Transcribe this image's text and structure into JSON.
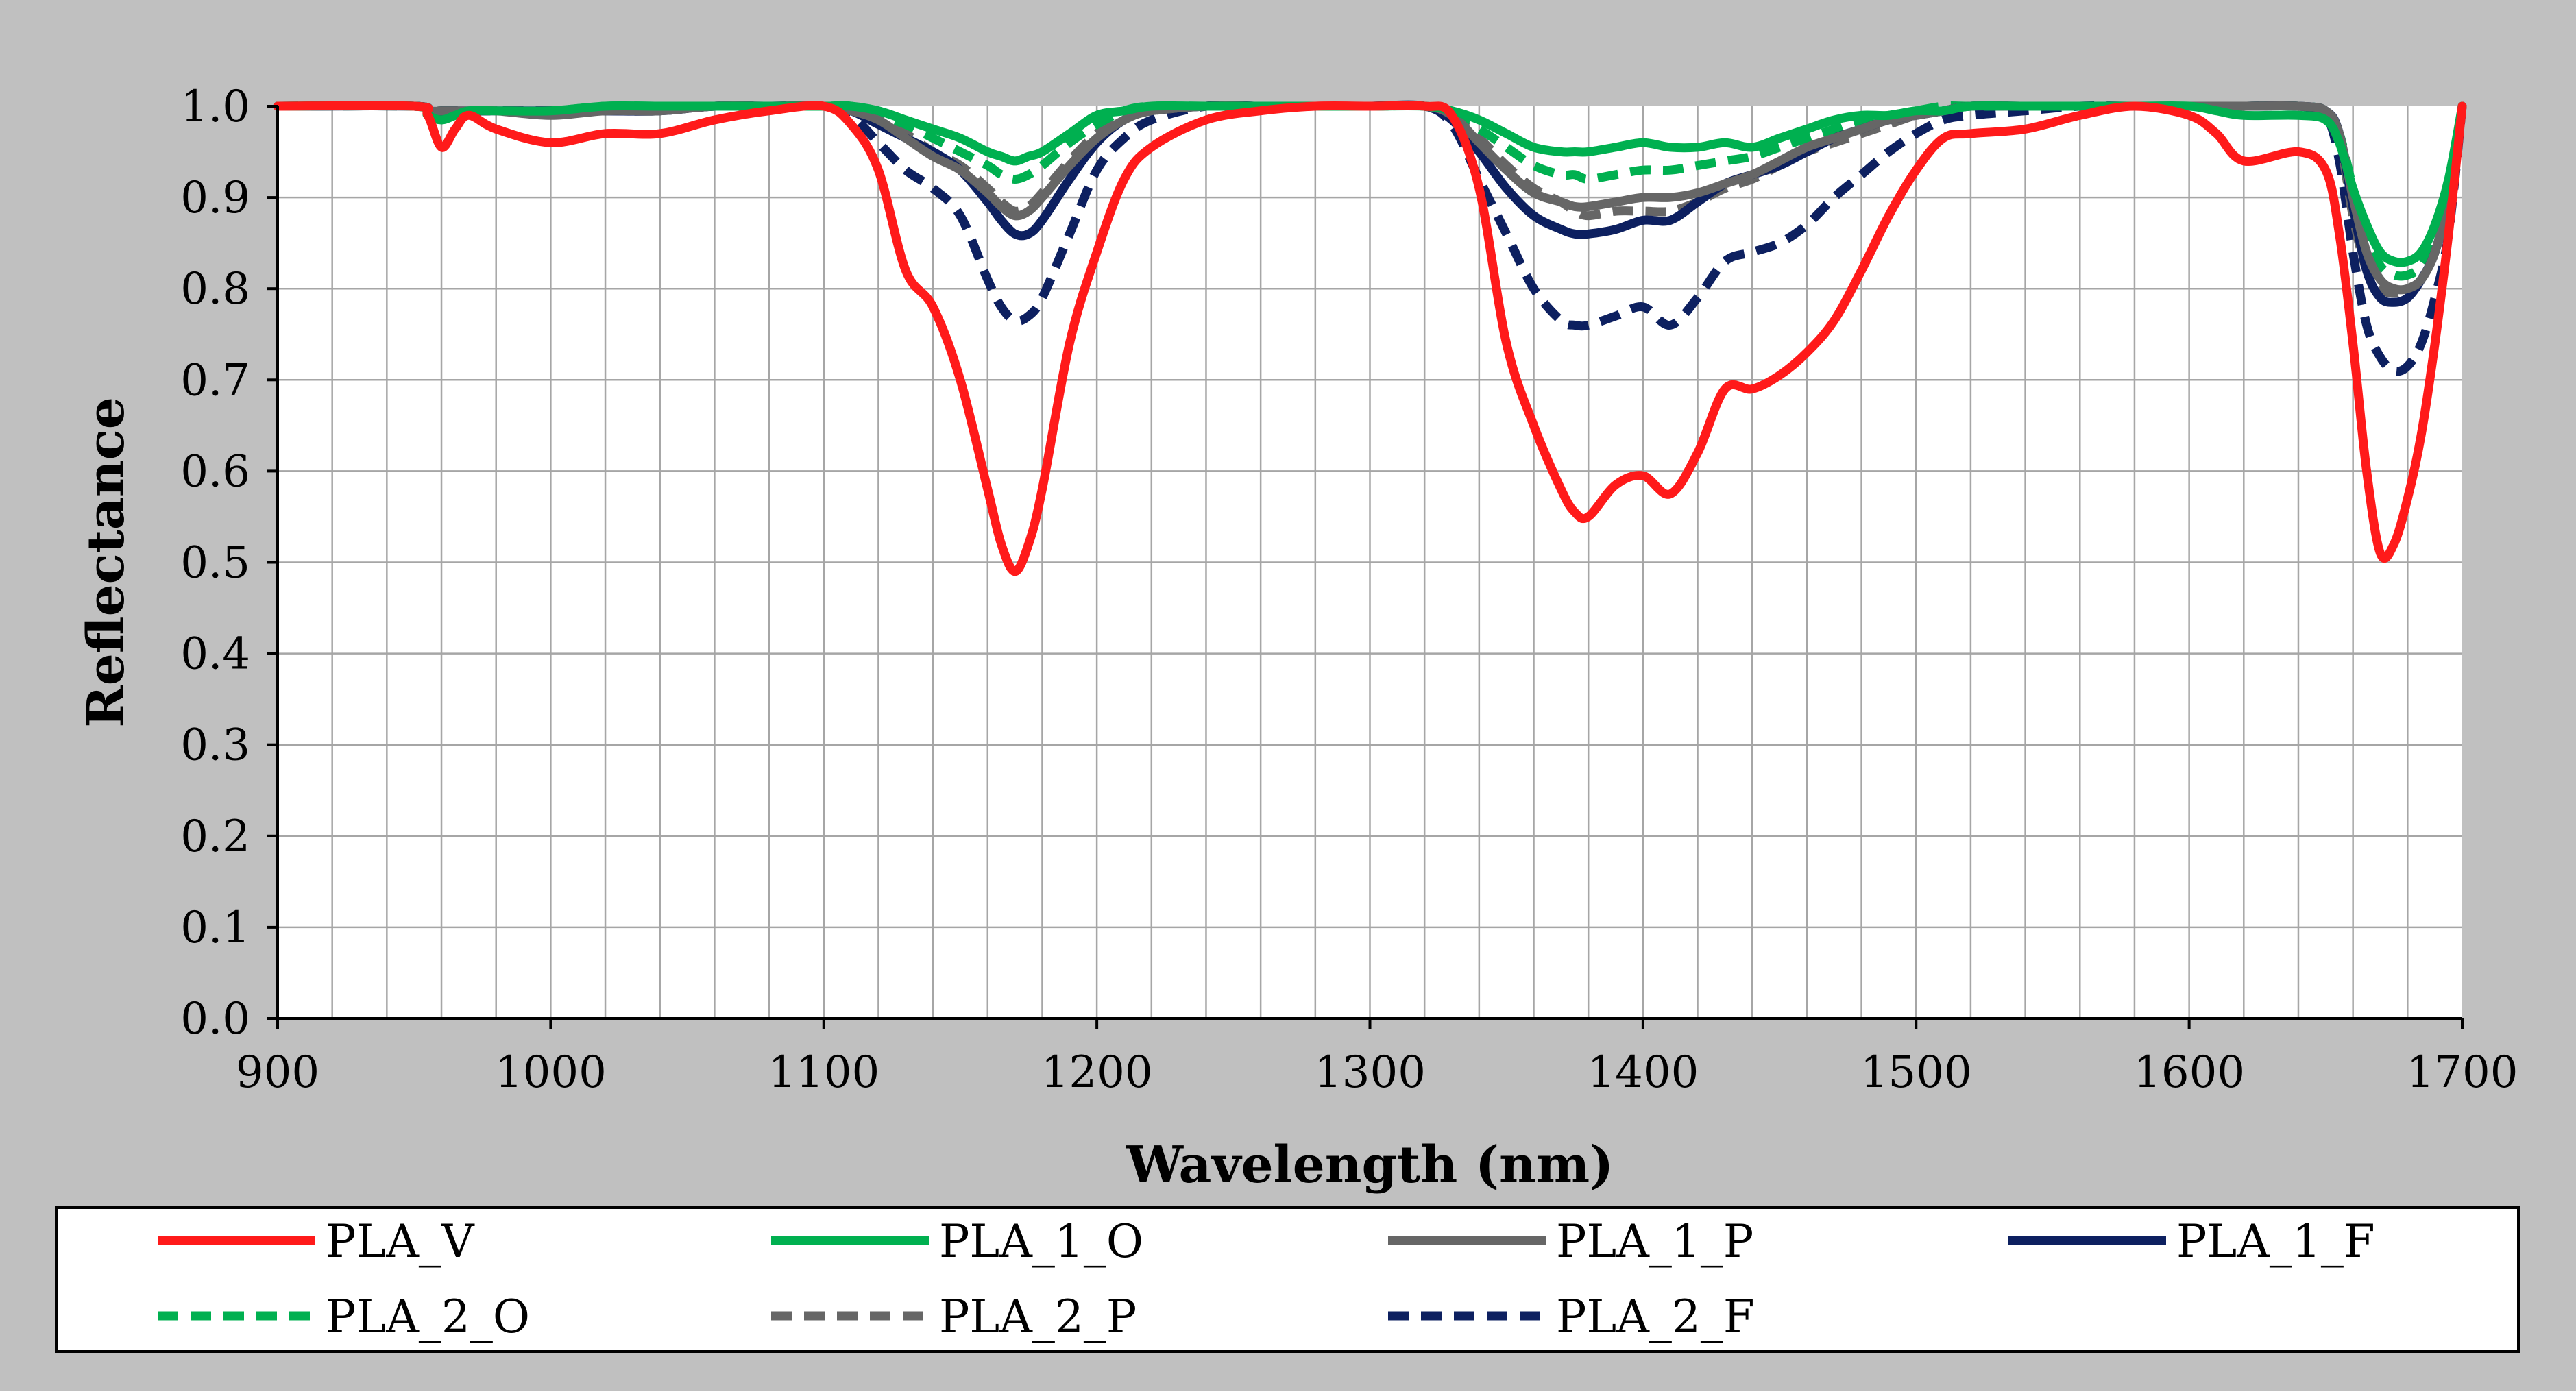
{
  "chart_data": {
    "type": "line",
    "title": "",
    "xlabel": "Wavelength (nm)",
    "ylabel": "Reflectance",
    "xlim": [
      900,
      1700
    ],
    "ylim": [
      0.0,
      1.0
    ],
    "x_ticks": [
      900,
      1000,
      1100,
      1200,
      1300,
      1400,
      1500,
      1600,
      1700
    ],
    "x_tick_labels": [
      "900",
      "1000",
      "1100",
      "1200",
      "1300",
      "1400",
      "1500",
      "1600",
      "1700"
    ],
    "y_ticks": [
      0.0,
      0.1,
      0.2,
      0.3,
      0.4,
      0.5,
      0.6,
      0.7,
      0.8,
      0.9,
      1.0
    ],
    "y_tick_labels": [
      "0.0",
      "0.1",
      "0.2",
      "0.3",
      "0.4",
      "0.5",
      "0.6",
      "0.7",
      "0.8",
      "0.9",
      "1.0"
    ],
    "grid": true,
    "minor_x_grid_step": 20,
    "legend_position": "bottom",
    "x": [
      900,
      950,
      955,
      960,
      965,
      970,
      980,
      1000,
      1020,
      1040,
      1060,
      1080,
      1100,
      1110,
      1120,
      1130,
      1140,
      1150,
      1160,
      1165,
      1170,
      1175,
      1180,
      1190,
      1200,
      1210,
      1220,
      1240,
      1260,
      1280,
      1300,
      1320,
      1330,
      1340,
      1350,
      1360,
      1370,
      1375,
      1380,
      1390,
      1400,
      1410,
      1420,
      1430,
      1440,
      1450,
      1460,
      1470,
      1480,
      1490,
      1500,
      1510,
      1520,
      1540,
      1560,
      1580,
      1600,
      1610,
      1620,
      1640,
      1650,
      1655,
      1660,
      1665,
      1670,
      1675,
      1680,
      1685,
      1690,
      1695,
      1700
    ],
    "series": [
      {
        "name": "PLA_V",
        "color": "#ff1a1a",
        "dash": "solid",
        "values": [
          1.0,
          1.0,
          0.99,
          0.955,
          0.975,
          0.99,
          0.975,
          0.96,
          0.97,
          0.97,
          0.985,
          0.995,
          1.0,
          0.98,
          0.93,
          0.82,
          0.78,
          0.7,
          0.58,
          0.52,
          0.49,
          0.52,
          0.58,
          0.74,
          0.84,
          0.92,
          0.955,
          0.985,
          0.995,
          1.0,
          1.0,
          1.0,
          0.99,
          0.91,
          0.74,
          0.65,
          0.58,
          0.555,
          0.55,
          0.585,
          0.595,
          0.575,
          0.62,
          0.69,
          0.69,
          0.705,
          0.73,
          0.765,
          0.82,
          0.88,
          0.93,
          0.965,
          0.97,
          0.975,
          0.99,
          1.0,
          0.99,
          0.97,
          0.94,
          0.95,
          0.93,
          0.86,
          0.74,
          0.6,
          0.51,
          0.52,
          0.57,
          0.64,
          0.74,
          0.86,
          1.0
        ]
      },
      {
        "name": "PLA_1_O",
        "color": "#00b050",
        "dash": "solid",
        "values": [
          1.0,
          1.0,
          0.99,
          0.985,
          0.99,
          0.995,
          0.995,
          0.995,
          1.0,
          1.0,
          1.0,
          1.0,
          1.0,
          1.0,
          0.995,
          0.985,
          0.975,
          0.965,
          0.95,
          0.945,
          0.94,
          0.945,
          0.95,
          0.97,
          0.99,
          0.995,
          1.0,
          1.0,
          1.0,
          1.0,
          1.0,
          1.0,
          0.995,
          0.985,
          0.97,
          0.955,
          0.95,
          0.95,
          0.95,
          0.955,
          0.96,
          0.955,
          0.955,
          0.96,
          0.955,
          0.965,
          0.975,
          0.985,
          0.99,
          0.99,
          0.995,
          0.995,
          1.0,
          1.0,
          1.0,
          1.0,
          1.0,
          0.995,
          0.99,
          0.99,
          0.985,
          0.96,
          0.91,
          0.87,
          0.84,
          0.83,
          0.83,
          0.84,
          0.87,
          0.92,
          1.0
        ]
      },
      {
        "name": "PLA_1_P",
        "color": "#666666",
        "dash": "solid",
        "values": [
          1.0,
          1.0,
          0.995,
          0.995,
          0.995,
          0.995,
          0.995,
          0.99,
          0.995,
          0.995,
          1.0,
          1.0,
          1.0,
          0.995,
          0.985,
          0.965,
          0.945,
          0.93,
          0.905,
          0.89,
          0.88,
          0.885,
          0.9,
          0.935,
          0.965,
          0.985,
          0.995,
          1.0,
          1.0,
          1.0,
          1.0,
          1.0,
          0.99,
          0.96,
          0.93,
          0.905,
          0.895,
          0.89,
          0.89,
          0.895,
          0.9,
          0.9,
          0.905,
          0.915,
          0.925,
          0.94,
          0.955,
          0.965,
          0.975,
          0.985,
          0.99,
          0.995,
          1.0,
          1.0,
          1.0,
          1.0,
          1.0,
          1.0,
          1.0,
          1.0,
          0.995,
          0.97,
          0.9,
          0.84,
          0.81,
          0.8,
          0.8,
          0.81,
          0.84,
          0.9,
          1.0
        ]
      },
      {
        "name": "PLA_1_F",
        "color": "#0d2060",
        "dash": "solid",
        "values": [
          1.0,
          1.0,
          0.995,
          0.995,
          0.995,
          0.995,
          0.995,
          0.995,
          0.995,
          0.995,
          1.0,
          1.0,
          1.0,
          0.995,
          0.98,
          0.965,
          0.95,
          0.93,
          0.895,
          0.875,
          0.86,
          0.86,
          0.875,
          0.92,
          0.96,
          0.985,
          0.995,
          1.0,
          1.0,
          1.0,
          1.0,
          1.0,
          0.985,
          0.95,
          0.91,
          0.88,
          0.865,
          0.86,
          0.86,
          0.865,
          0.875,
          0.875,
          0.895,
          0.915,
          0.925,
          0.935,
          0.95,
          0.965,
          0.975,
          0.985,
          0.99,
          0.995,
          1.0,
          1.0,
          1.0,
          1.0,
          1.0,
          1.0,
          1.0,
          1.0,
          0.995,
          0.97,
          0.89,
          0.82,
          0.79,
          0.785,
          0.79,
          0.81,
          0.84,
          0.9,
          1.0
        ]
      },
      {
        "name": "PLA_2_O",
        "color": "#00b050",
        "dash": "dashed",
        "values": [
          1.0,
          1.0,
          0.995,
          0.995,
          0.995,
          0.995,
          0.995,
          0.995,
          1.0,
          1.0,
          1.0,
          1.0,
          1.0,
          1.0,
          0.99,
          0.98,
          0.965,
          0.95,
          0.935,
          0.925,
          0.92,
          0.925,
          0.935,
          0.96,
          0.98,
          0.995,
          1.0,
          1.0,
          1.0,
          1.0,
          1.0,
          1.0,
          0.99,
          0.975,
          0.955,
          0.935,
          0.925,
          0.925,
          0.92,
          0.925,
          0.93,
          0.93,
          0.935,
          0.94,
          0.945,
          0.955,
          0.965,
          0.975,
          0.985,
          0.99,
          0.995,
          1.0,
          1.0,
          1.0,
          1.0,
          1.0,
          1.0,
          1.0,
          1.0,
          1.0,
          0.995,
          0.97,
          0.91,
          0.86,
          0.825,
          0.815,
          0.815,
          0.825,
          0.855,
          0.9,
          1.0
        ]
      },
      {
        "name": "PLA_2_P",
        "color": "#666666",
        "dash": "dashed",
        "values": [
          1.0,
          1.0,
          0.995,
          0.995,
          0.995,
          0.995,
          0.995,
          0.995,
          0.995,
          0.995,
          1.0,
          1.0,
          1.0,
          0.995,
          0.985,
          0.97,
          0.95,
          0.935,
          0.91,
          0.895,
          0.885,
          0.89,
          0.905,
          0.94,
          0.97,
          0.99,
          0.995,
          1.0,
          1.0,
          1.0,
          1.0,
          1.0,
          0.99,
          0.965,
          0.935,
          0.91,
          0.895,
          0.885,
          0.88,
          0.885,
          0.885,
          0.885,
          0.895,
          0.91,
          0.92,
          0.935,
          0.95,
          0.96,
          0.97,
          0.98,
          0.99,
          0.995,
          1.0,
          1.0,
          1.0,
          1.0,
          1.0,
          1.0,
          1.0,
          1.0,
          0.995,
          0.965,
          0.88,
          0.82,
          0.8,
          0.795,
          0.8,
          0.81,
          0.84,
          0.9,
          1.0
        ]
      },
      {
        "name": "PLA_2_F",
        "color": "#0d2060",
        "dash": "dashed",
        "values": [
          1.0,
          1.0,
          0.995,
          0.995,
          0.995,
          0.995,
          0.995,
          0.995,
          0.995,
          0.995,
          1.0,
          1.0,
          1.0,
          0.99,
          0.96,
          0.93,
          0.91,
          0.88,
          0.81,
          0.78,
          0.765,
          0.77,
          0.79,
          0.86,
          0.93,
          0.965,
          0.985,
          1.0,
          1.0,
          1.0,
          1.0,
          1.0,
          0.98,
          0.92,
          0.86,
          0.8,
          0.765,
          0.76,
          0.76,
          0.77,
          0.78,
          0.76,
          0.79,
          0.83,
          0.84,
          0.85,
          0.87,
          0.9,
          0.925,
          0.95,
          0.97,
          0.985,
          0.99,
          0.995,
          1.0,
          1.0,
          1.0,
          1.0,
          1.0,
          1.0,
          0.99,
          0.94,
          0.84,
          0.76,
          0.725,
          0.71,
          0.715,
          0.74,
          0.79,
          0.86,
          1.0
        ]
      }
    ]
  },
  "colors": {
    "frame_background": "#c0c0c0",
    "plot_background": "#ffffff",
    "grid": "#a6a6a6",
    "axis": "#000000"
  }
}
